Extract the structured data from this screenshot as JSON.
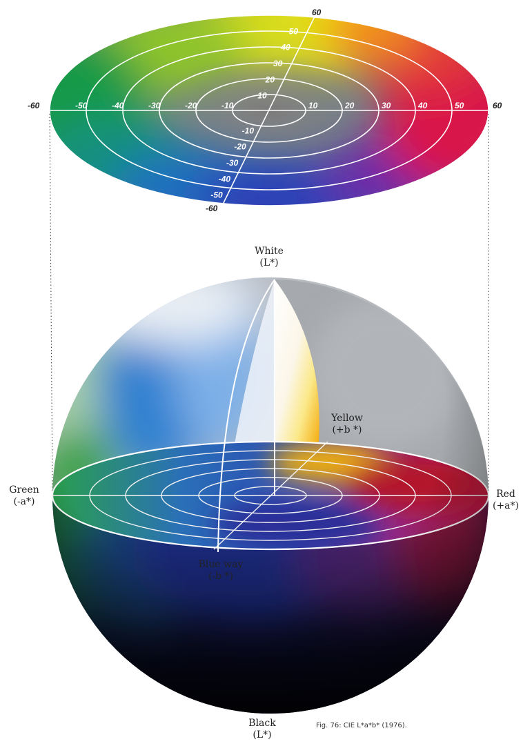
{
  "disc": {
    "a_axis_ticks": [
      "-60",
      "-50",
      "-40",
      "-30",
      "-20",
      "-10",
      "10",
      "20",
      "30",
      "40",
      "50",
      "60"
    ],
    "b_axis_pos_ticks": [
      "10",
      "20",
      "30",
      "40",
      "50",
      "60"
    ],
    "b_axis_neg_ticks": [
      "-10",
      "-20",
      "-30",
      "-40",
      "-50",
      "-60"
    ]
  },
  "sphere": {
    "top_label": {
      "line1": "White",
      "line2": "(L*)"
    },
    "bottom_label": {
      "line1": "Black",
      "line2": "(L*)"
    },
    "left_label": {
      "line1": "Green",
      "line2": "(-a*)"
    },
    "right_label": {
      "line1": "Red",
      "line2": "(+a*)"
    },
    "yellow_label": {
      "line1": "Yellow",
      "line2": "(+b *)"
    },
    "blue_label": {
      "line1": "Blue way",
      "line2": "(-b *)"
    }
  },
  "caption": "Fig. 76: CIE L*a*b* (1976).",
  "colors": {
    "green": "#1f9a3e",
    "yellow": "#f5e400",
    "red": "#d4123c",
    "blue": "#1d3c9c",
    "purple": "#7b2a9a",
    "grey": "#a9abad"
  }
}
